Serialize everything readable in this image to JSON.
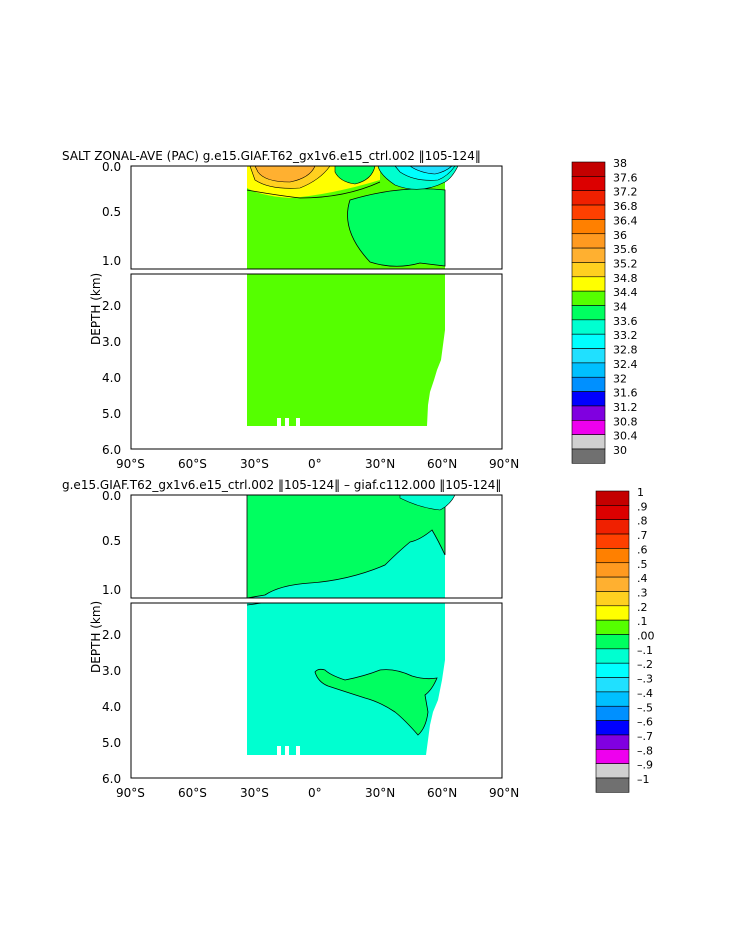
{
  "chart_data": [
    {
      "type": "heatmap",
      "title": "SALT ZONAL-AVE (PAC) g.e15.GIAF.T62_gx1v6.e15_ctrl.002 ‖105-124‖",
      "ylabel": "DEPTH (km)",
      "xticks": [
        "90°S",
        "60°S",
        "30°S",
        "0°",
        "30°N",
        "60°N",
        "90°N"
      ],
      "yticks_upper": [
        "0.0",
        "0.5",
        "1.0"
      ],
      "yticks_lower": [
        "2.0",
        "3.0",
        "4.0",
        "5.0",
        "6.0"
      ],
      "xlim": [
        -90,
        90
      ],
      "ylim": [
        0,
        6
      ],
      "colorbar": {
        "labels": [
          "38",
          "37.6",
          "37.2",
          "36.8",
          "36.4",
          "36",
          "35.6",
          "35.2",
          "34.8",
          "34.4",
          "34",
          "33.6",
          "33.2",
          "32.8",
          "32.4",
          "32",
          "31.6",
          "31.2",
          "30.8",
          "30.4",
          "30"
        ],
        "colors": [
          "#c40000",
          "#dc0000",
          "#f02000",
          "#ff4000",
          "#ff8000",
          "#ff9a20",
          "#ffb030",
          "#ffd020",
          "#ffff00",
          "#55ff00",
          "#00ff60",
          "#00ffd0",
          "#00ffff",
          "#20e0ff",
          "#00c0ff",
          "#0090ff",
          "#0000ff",
          "#8000e0",
          "#ee00ee",
          "#d0d0d0",
          "#707070"
        ]
      },
      "notes": "Dominant field ~34.4–34.8 (green) below 0.3 km; high salinity (>35.6) near 30°S–10°S surface; fresher (<33.6) north of 40°N surface."
    },
    {
      "type": "heatmap",
      "title": "g.e15.GIAF.T62_gx1v6.e15_ctrl.002 ‖105-124‖ – giaf.c112.000 ‖105-124‖",
      "ylabel": "DEPTH (km)",
      "xticks": [
        "90°S",
        "60°S",
        "30°S",
        "0°",
        "30°N",
        "60°N",
        "90°N"
      ],
      "yticks_upper": [
        "0.0",
        "0.5",
        "1.0"
      ],
      "yticks_lower": [
        "2.0",
        "3.0",
        "4.0",
        "5.0",
        "6.0"
      ],
      "xlim": [
        -90,
        90
      ],
      "ylim": [
        0,
        6
      ],
      "colorbar": {
        "labels": [
          "1",
          ".9",
          ".8",
          ".7",
          ".6",
          ".5",
          ".4",
          ".3",
          ".2",
          ".1",
          ".00",
          "–.1",
          "–.2",
          "–.3",
          "–.4",
          "–.5",
          "–.6",
          "–.7",
          "–.8",
          "–.9",
          "–1"
        ],
        "colors": [
          "#c40000",
          "#dc0000",
          "#f02000",
          "#ff4000",
          "#ff8000",
          "#ff9a20",
          "#ffb030",
          "#ffd020",
          "#ffff00",
          "#55ff00",
          "#00ff60",
          "#00ffd0",
          "#00ffff",
          "#20e0ff",
          "#00c0ff",
          "#0090ff",
          "#0000ff",
          "#8000e0",
          "#ee00ee",
          "#d0d0d0",
          "#707070"
        ]
      },
      "notes": "Upper ocean slightly positive (0 to .1, green); deep ocean slightly negative (0 to -.1, cyan) with a positive tongue near 0°–30°N at 3–4.5 km."
    }
  ]
}
